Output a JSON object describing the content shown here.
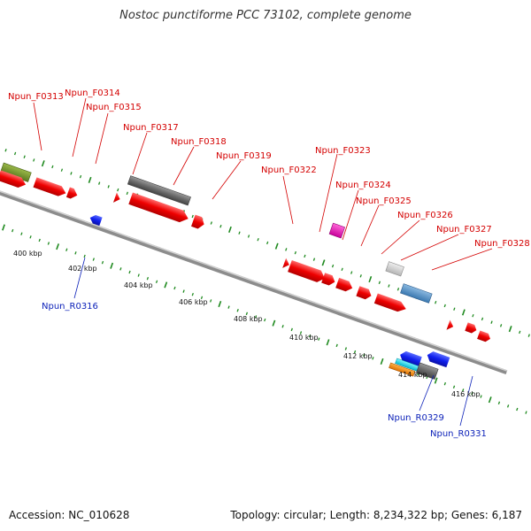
{
  "title": "Nostoc punctiforme PCC 73102, complete genome",
  "accession": "Accession: NC_010628",
  "summary": "Topology: circular; Length: 8,234,322 bp; Genes: 6,187",
  "colors": {
    "backbone": "#8c8c8c",
    "tick": "#1f8a1f",
    "forward_label": "#d40000",
    "reverse_label": "#0a1fb8"
  },
  "coordinate_labels": [
    "400 kbp",
    "402 kbp",
    "404 kbp",
    "406 kbp",
    "408 kbp",
    "410 kbp",
    "412 kbp",
    "414 kbp",
    "416 kbp"
  ],
  "forward_genes": [
    "Npun_F0313",
    "Npun_F0314",
    "Npun_F0315",
    "Npun_F0317",
    "Npun_F0318",
    "Npun_F0319",
    "Npun_F0322",
    "Npun_F0323",
    "Npun_F0324",
    "Npun_F0325",
    "Npun_F0326",
    "Npun_F0327",
    "Npun_F0328"
  ],
  "reverse_genes": [
    "Npun_R0316",
    "Npun_R0329",
    "Npun_R0331"
  ]
}
